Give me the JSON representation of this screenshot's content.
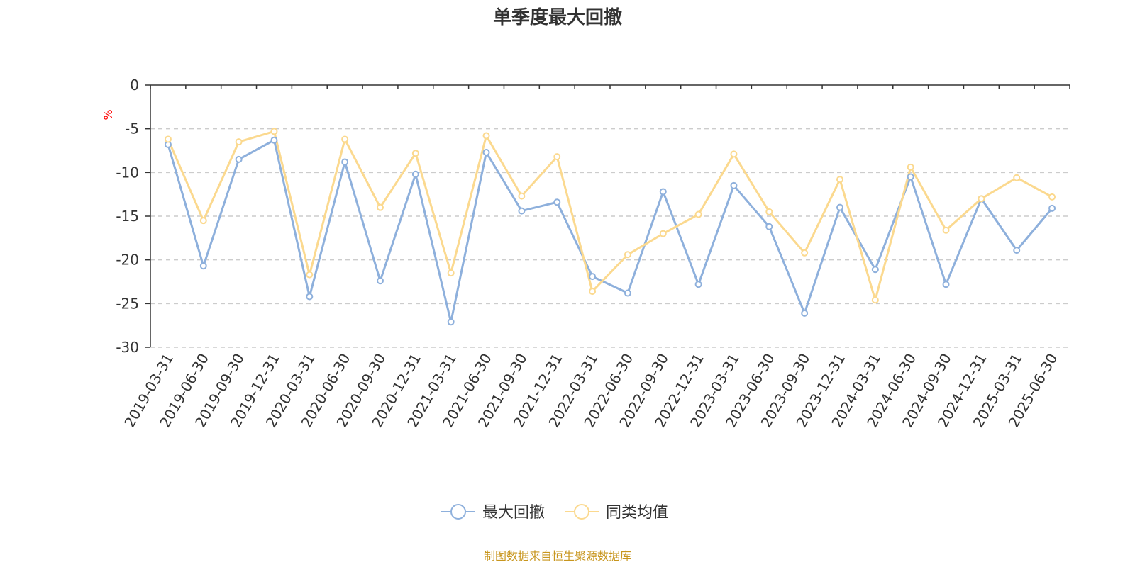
{
  "chart_data": {
    "type": "line",
    "title": "单季度最大回撤",
    "unit_label": "%",
    "categories": [
      "2019-03-31",
      "2019-06-30",
      "2019-09-30",
      "2019-12-31",
      "2020-03-31",
      "2020-06-30",
      "2020-09-30",
      "2020-12-31",
      "2021-03-31",
      "2021-06-30",
      "2021-09-30",
      "2021-12-31",
      "2022-03-31",
      "2022-06-30",
      "2022-09-30",
      "2022-12-31",
      "2023-03-31",
      "2023-06-30",
      "2023-09-30",
      "2023-12-31",
      "2024-03-31",
      "2024-06-30",
      "2024-09-30",
      "2024-12-31",
      "2025-03-31",
      "2025-06-30"
    ],
    "ylim": [
      -30,
      0
    ],
    "yticks": [
      0,
      -5,
      -10,
      -15,
      -20,
      -25,
      -30
    ],
    "grid": "horizontal-dashed",
    "legend_position": "bottom-center",
    "series": [
      {
        "name": "最大回撤",
        "color": "#8eb0dc",
        "values": [
          -6.8,
          -20.7,
          -8.5,
          -6.3,
          -24.2,
          -8.8,
          -22.4,
          -10.2,
          -27.1,
          -7.7,
          -14.4,
          -13.4,
          -21.9,
          -23.8,
          -12.2,
          -22.8,
          -11.5,
          -16.2,
          -26.1,
          -14.0,
          -21.1,
          -10.5,
          -22.8,
          -13.0,
          -18.9,
          -14.1
        ]
      },
      {
        "name": "同类均值",
        "color": "#fbd98f",
        "values": [
          -6.2,
          -15.5,
          -6.5,
          -5.3,
          -21.7,
          -6.2,
          -14.0,
          -7.8,
          -21.5,
          -5.8,
          -12.7,
          -8.2,
          -23.6,
          -19.4,
          -17.0,
          -14.8,
          -7.9,
          -14.5,
          -19.2,
          -10.8,
          -24.6,
          -9.4,
          -16.6,
          -13.0,
          -10.6,
          -12.8
        ]
      }
    ],
    "source_note": "制图数据来自恒生聚源数据库"
  },
  "colors": {
    "axis": "#333333",
    "grid": "#cccccc",
    "source_text": "#c8961e"
  }
}
